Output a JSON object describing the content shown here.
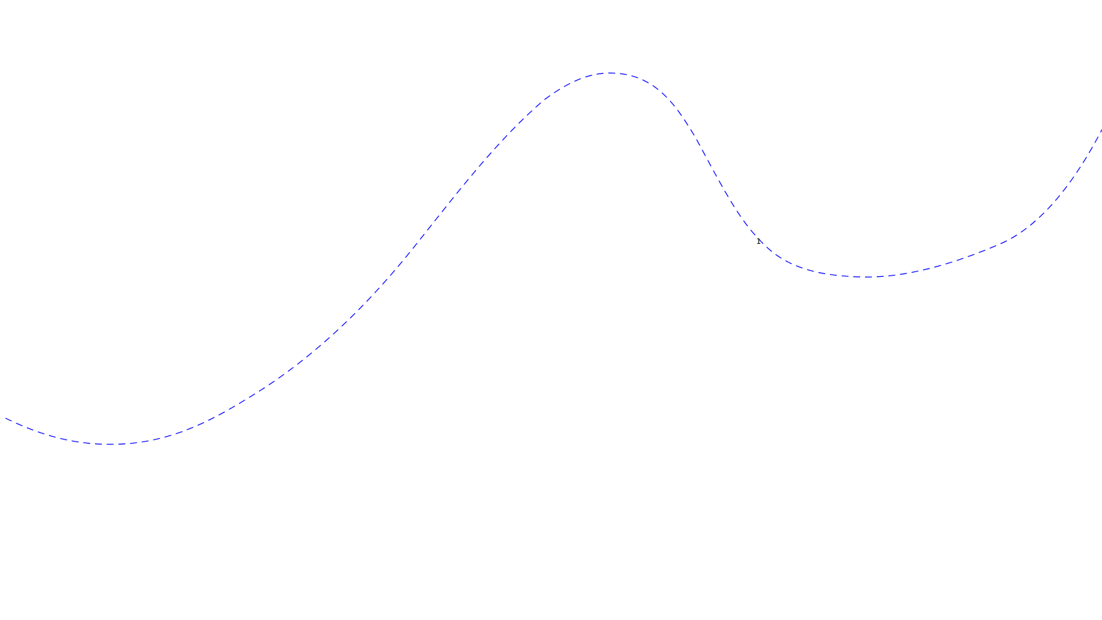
{
  "diagram": {
    "background": "#ffffff",
    "curve": {
      "name": "dashed-spline",
      "stroke_color": "#0000ff",
      "line_style": "dashed"
    },
    "label": {
      "text": "1",
      "color": "#000000"
    }
  }
}
